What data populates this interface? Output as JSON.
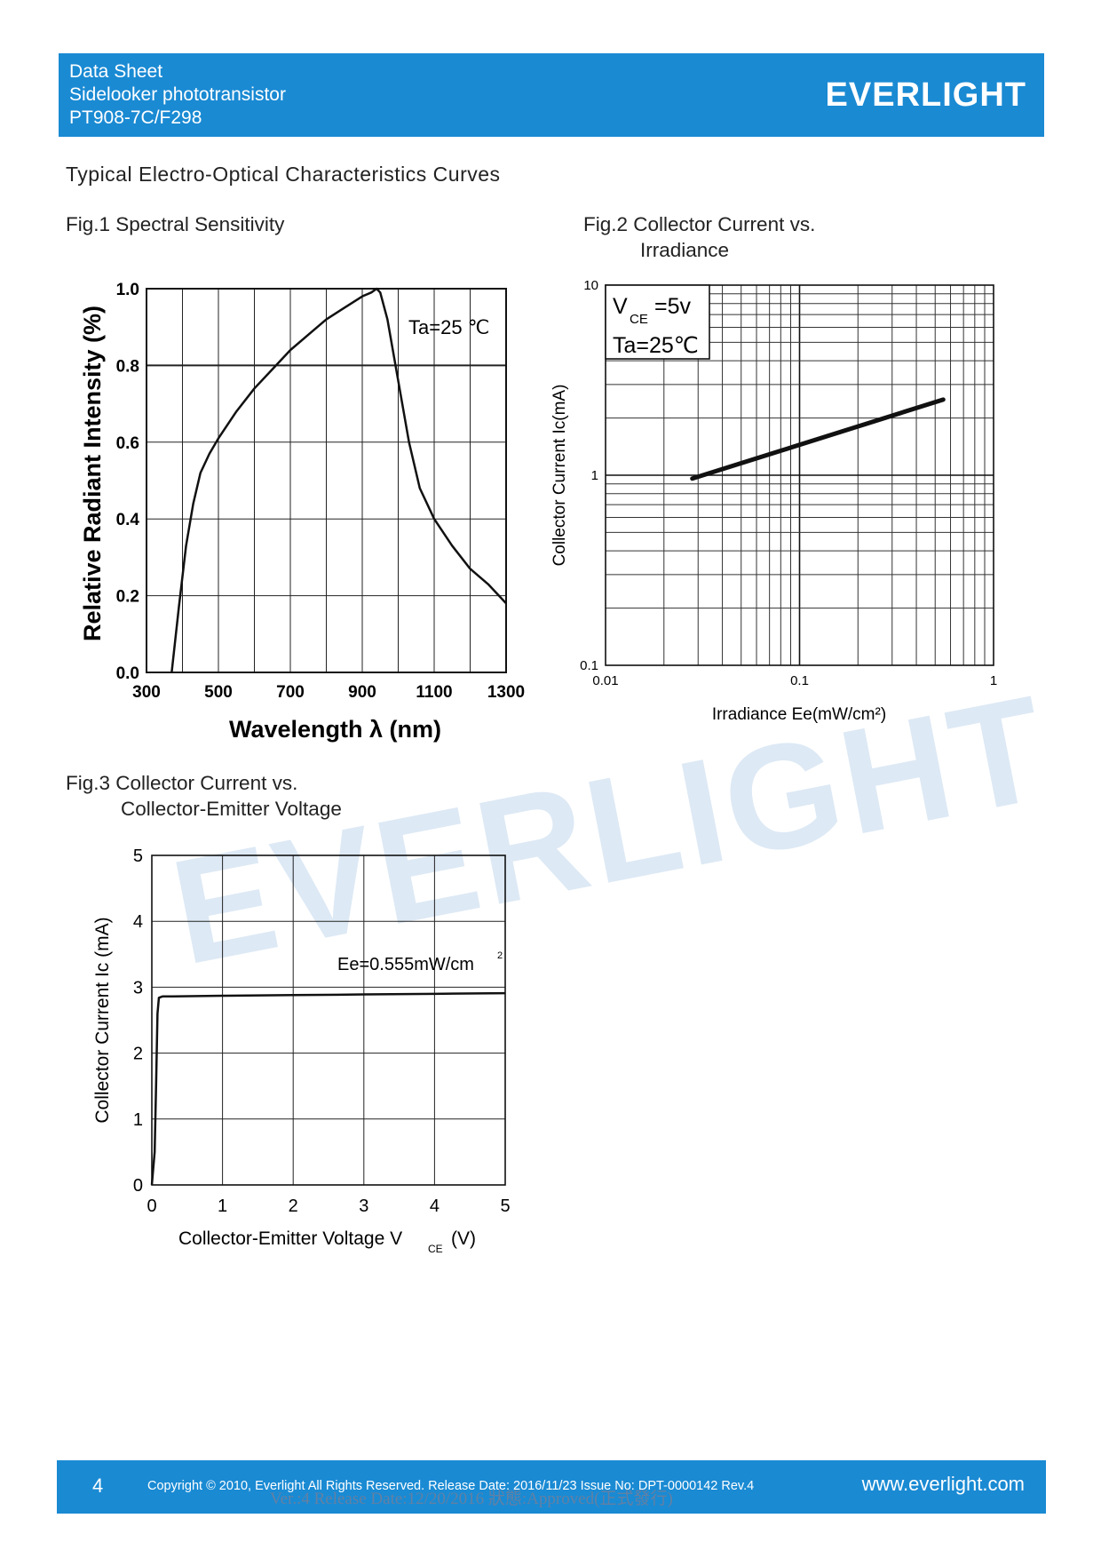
{
  "header": {
    "line1": "Data Sheet",
    "line2": "Sidelooker phototransistor",
    "line3": "PT908-7C/F298",
    "logo": "EVERLIGHT"
  },
  "section_title": "Typical Electro-Optical Characteristics Curves",
  "watermark": "EVERLIGHT",
  "figures": {
    "fig1_title": "Fig.1 Spectral Sensitivity",
    "fig2_title_l1": "Fig.2 Collector Current vs.",
    "fig2_title_l2": "Irradiance",
    "fig3_title_l1": "Fig.3 Collector Current vs.",
    "fig3_title_l2": "Collector-Emitter Voltage"
  },
  "chart_data": [
    {
      "type": "line",
      "title": "Fig.1 Spectral Sensitivity",
      "xlabel": "Wavelength λ (nm)",
      "ylabel": "Relative Radiant Intensity (%)",
      "xlim": [
        300,
        1300
      ],
      "ylim": [
        0,
        1.0
      ],
      "xticks": [
        "300",
        "500",
        "700",
        "900",
        "1100",
        "1300"
      ],
      "yticks": [
        "0.0",
        "0.2",
        "0.4",
        "0.6",
        "0.8",
        "1.0"
      ],
      "annotation": "Ta=25 ℃",
      "grid": true,
      "series": [
        {
          "x": [
            370,
            390,
            410,
            430,
            450,
            475,
            500,
            550,
            600,
            650,
            700,
            750,
            800,
            850,
            900,
            925,
            940,
            950,
            970,
            1000,
            1030,
            1060,
            1100,
            1150,
            1200,
            1250,
            1300
          ],
          "y": [
            0.0,
            0.17,
            0.33,
            0.44,
            0.52,
            0.57,
            0.61,
            0.68,
            0.74,
            0.79,
            0.84,
            0.88,
            0.92,
            0.95,
            0.98,
            0.99,
            1.0,
            0.99,
            0.92,
            0.76,
            0.6,
            0.48,
            0.4,
            0.33,
            0.27,
            0.23,
            0.18
          ]
        }
      ]
    },
    {
      "type": "line",
      "title": "Fig.2 Collector Current vs. Irradiance",
      "xlabel": "Irradiance Ee(mW/cm²)",
      "ylabel": "Collector Current Ic(mA)",
      "xscale": "log",
      "yscale": "log",
      "xlim": [
        0.01,
        1
      ],
      "ylim": [
        0.1,
        10
      ],
      "xticks": [
        "0.01",
        "0.1",
        "1"
      ],
      "yticks": [
        "0.1",
        "1",
        "10"
      ],
      "annotation_vce": "=5v",
      "annotation_ta": "Ta=25℃",
      "grid": true,
      "series": [
        {
          "x": [
            0.028,
            0.55
          ],
          "y": [
            0.96,
            2.5
          ]
        }
      ]
    },
    {
      "type": "line",
      "title": "Fig.3 Collector Current vs. Collector-Emitter Voltage",
      "xlabel": "Collector-Emitter Voltage V  (V)",
      "ylabel": "Collector Current Ic (mA)",
      "xlim": [
        0,
        5
      ],
      "ylim": [
        0,
        5
      ],
      "xticks": [
        "0",
        "1",
        "2",
        "3",
        "4",
        "5"
      ],
      "yticks": [
        "0",
        "1",
        "2",
        "3",
        "4",
        "5"
      ],
      "annotation": "Ee=0.555mW/cm",
      "grid": true,
      "series": [
        {
          "x": [
            0.0,
            0.04,
            0.06,
            0.08,
            0.1,
            0.15,
            0.3,
            1.0,
            2.0,
            3.0,
            4.0,
            5.0
          ],
          "y": [
            0.0,
            0.5,
            1.5,
            2.6,
            2.84,
            2.86,
            2.86,
            2.87,
            2.88,
            2.89,
            2.9,
            2.91
          ]
        }
      ]
    }
  ],
  "footer": {
    "page": "4",
    "copyright": "Copyright © 2010, Everlight All Rights Reserved. Release Date: 2016/11/23 Issue No: DPT-0000142 Rev.4",
    "website": "www.everlight.com",
    "stamp": "Ver.:4      Release Date:12/20/2016       狀態:Approved(正式發行)"
  },
  "colors": {
    "brand_blue": "#1a8ad3",
    "watermark": "#dde9f5"
  }
}
